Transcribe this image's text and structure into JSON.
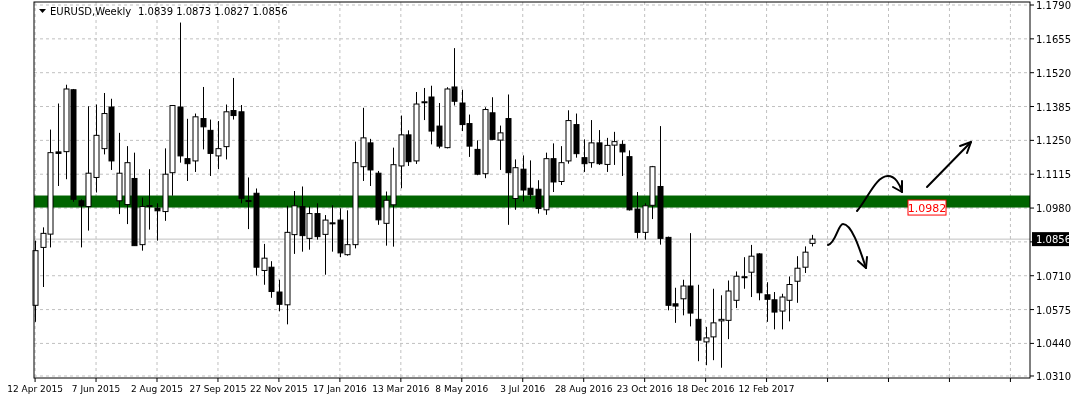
{
  "chart_data": {
    "type": "candlestick",
    "title": "EURUSD,Weekly",
    "subtitle": "1.0839 1.0873 1.0827 1.0856",
    "x": [
      "2015-04-12",
      "2015-04-19",
      "2015-04-26",
      "2015-05-03",
      "2015-05-10",
      "2015-05-17",
      "2015-05-24",
      "2015-05-31",
      "2015-06-07",
      "2015-06-14",
      "2015-06-21",
      "2015-06-28",
      "2015-07-05",
      "2015-07-12",
      "2015-07-19",
      "2015-07-26",
      "2015-08-02",
      "2015-08-09",
      "2015-08-16",
      "2015-08-23",
      "2015-08-30",
      "2015-09-06",
      "2015-09-13",
      "2015-09-20",
      "2015-09-27",
      "2015-10-04",
      "2015-10-11",
      "2015-10-18",
      "2015-10-25",
      "2015-11-01",
      "2015-11-08",
      "2015-11-15",
      "2015-11-22",
      "2015-11-29",
      "2015-12-06",
      "2015-12-13",
      "2015-12-20",
      "2015-12-27",
      "2016-01-03",
      "2016-01-10",
      "2016-01-17",
      "2016-01-24",
      "2016-01-31",
      "2016-02-07",
      "2016-02-14",
      "2016-02-21",
      "2016-02-28",
      "2016-03-06",
      "2016-03-13",
      "2016-03-20",
      "2016-03-27",
      "2016-04-03",
      "2016-04-10",
      "2016-04-17",
      "2016-04-24",
      "2016-05-01",
      "2016-05-08",
      "2016-05-15",
      "2016-05-22",
      "2016-05-29",
      "2016-06-05",
      "2016-06-12",
      "2016-06-19",
      "2016-06-26",
      "2016-07-03",
      "2016-07-10",
      "2016-07-17",
      "2016-07-24",
      "2016-07-31",
      "2016-08-07",
      "2016-08-14",
      "2016-08-21",
      "2016-08-28",
      "2016-09-04",
      "2016-09-11",
      "2016-09-18",
      "2016-09-25",
      "2016-10-02",
      "2016-10-09",
      "2016-10-16",
      "2016-10-23",
      "2016-10-30",
      "2016-11-06",
      "2016-11-13",
      "2016-11-20",
      "2016-11-27",
      "2016-12-04",
      "2016-12-11",
      "2016-12-18",
      "2016-12-25",
      "2017-01-01",
      "2017-01-08",
      "2017-01-15",
      "2017-01-22",
      "2017-01-29",
      "2017-02-05",
      "2017-02-12",
      "2017-02-19",
      "2017-02-26",
      "2017-03-05",
      "2017-03-12",
      "2017-03-19",
      "2017-03-26"
    ],
    "ohlc": [
      [
        1.0592,
        1.085,
        1.0526,
        1.081
      ],
      [
        1.0823,
        1.0903,
        1.0665,
        1.0879
      ],
      [
        1.0876,
        1.1293,
        1.0823,
        1.1201
      ],
      [
        1.1204,
        1.1397,
        1.1068,
        1.1198
      ],
      [
        1.1205,
        1.1472,
        1.1095,
        1.1455
      ],
      [
        1.1452,
        1.1455,
        1.1005,
        1.1015
      ],
      [
        1.1009,
        1.1015,
        1.0823,
        1.0989
      ],
      [
        1.0986,
        1.1386,
        1.089,
        1.1119
      ],
      [
        1.1102,
        1.1393,
        1.1042,
        1.127
      ],
      [
        1.1217,
        1.1439,
        1.1194,
        1.1357
      ],
      [
        1.1383,
        1.1416,
        1.1132,
        1.1168
      ],
      [
        1.1009,
        1.128,
        1.0956,
        1.1119
      ],
      [
        1.0994,
        1.1227,
        1.0916,
        1.1161
      ],
      [
        1.1098,
        1.1201,
        1.083,
        1.083
      ],
      [
        1.0834,
        1.1022,
        1.081,
        1.0986
      ],
      [
        1.0987,
        1.1135,
        1.0894,
        1.099
      ],
      [
        1.098,
        1.0999,
        1.085,
        1.0969
      ],
      [
        1.0966,
        1.1218,
        1.0929,
        1.1115
      ],
      [
        1.1121,
        1.1391,
        1.1029,
        1.1389
      ],
      [
        1.1383,
        1.172,
        1.1161,
        1.1188
      ],
      [
        1.1177,
        1.1336,
        1.1088,
        1.1157
      ],
      [
        1.1168,
        1.1357,
        1.1124,
        1.1344
      ],
      [
        1.1337,
        1.1463,
        1.1214,
        1.1304
      ],
      [
        1.129,
        1.1333,
        1.1108,
        1.1198
      ],
      [
        1.1188,
        1.1327,
        1.1135,
        1.1217
      ],
      [
        1.1225,
        1.1393,
        1.1174,
        1.1364
      ],
      [
        1.1369,
        1.1499,
        1.1333,
        1.1349
      ],
      [
        1.1364,
        1.1391,
        1.0999,
        1.1019
      ],
      [
        1.101,
        1.1102,
        1.0896,
        1.1008
      ],
      [
        1.1039,
        1.1058,
        1.0711,
        1.0744
      ],
      [
        1.0731,
        1.0837,
        1.0674,
        1.078
      ],
      [
        1.0744,
        1.0768,
        1.0622,
        1.0647
      ],
      [
        1.0645,
        1.0694,
        1.0568,
        1.0596
      ],
      [
        1.0594,
        1.0989,
        1.0516,
        1.0883
      ],
      [
        1.0874,
        1.1048,
        1.0797,
        1.0989
      ],
      [
        1.0986,
        1.1066,
        1.0806,
        1.087
      ],
      [
        1.0859,
        1.0986,
        1.0814,
        1.0958
      ],
      [
        1.0958,
        1.0999,
        1.0854,
        1.0866
      ],
      [
        1.0875,
        1.0952,
        1.0714,
        1.0932
      ],
      [
        1.0921,
        1.0991,
        1.0806,
        1.0919
      ],
      [
        1.0932,
        1.0979,
        1.0784,
        1.0801
      ],
      [
        1.0794,
        1.0971,
        1.079,
        1.0834
      ],
      [
        1.0834,
        1.1245,
        1.0819,
        1.1161
      ],
      [
        1.1145,
        1.138,
        1.1088,
        1.126
      ],
      [
        1.124,
        1.1256,
        1.1068,
        1.1132
      ],
      [
        1.1119,
        1.1128,
        1.0913,
        1.0933
      ],
      [
        1.0919,
        1.1046,
        1.083,
        1.1011
      ],
      [
        1.0993,
        1.1221,
        1.0826,
        1.1153
      ],
      [
        1.1148,
        1.1349,
        1.1059,
        1.1272
      ],
      [
        1.1272,
        1.129,
        1.1148,
        1.1165
      ],
      [
        1.1168,
        1.1443,
        1.1156,
        1.1395
      ],
      [
        1.1402,
        1.1459,
        1.1331,
        1.1404
      ],
      [
        1.1423,
        1.1468,
        1.1234,
        1.1287
      ],
      [
        1.1307,
        1.1399,
        1.1218,
        1.1227
      ],
      [
        1.1221,
        1.1462,
        1.1218,
        1.1455
      ],
      [
        1.1463,
        1.1618,
        1.1389,
        1.1406
      ],
      [
        1.1399,
        1.1452,
        1.1287,
        1.1313
      ],
      [
        1.1317,
        1.1353,
        1.1184,
        1.1227
      ],
      [
        1.1214,
        1.125,
        1.1111,
        1.1115
      ],
      [
        1.1117,
        1.1382,
        1.1099,
        1.1373
      ],
      [
        1.136,
        1.1422,
        1.1252,
        1.1254
      ],
      [
        1.1251,
        1.1309,
        1.1132,
        1.128
      ],
      [
        1.1337,
        1.1433,
        1.0913,
        1.1121
      ],
      [
        1.1018,
        1.1174,
        1.0973,
        1.1141
      ],
      [
        1.1135,
        1.119,
        1.1006,
        1.1052
      ],
      [
        1.1059,
        1.117,
        1.1015,
        1.1033
      ],
      [
        1.1055,
        1.1091,
        1.0958,
        1.0978
      ],
      [
        1.0973,
        1.1201,
        1.0953,
        1.1177
      ],
      [
        1.1177,
        1.1238,
        1.1044,
        1.1084
      ],
      [
        1.1086,
        1.1227,
        1.1072,
        1.1161
      ],
      [
        1.1168,
        1.137,
        1.1157,
        1.1329
      ],
      [
        1.1313,
        1.1357,
        1.1181,
        1.1197
      ],
      [
        1.1181,
        1.1254,
        1.1124,
        1.1157
      ],
      [
        1.1161,
        1.1331,
        1.1141,
        1.124
      ],
      [
        1.124,
        1.1291,
        1.1152,
        1.1157
      ],
      [
        1.1154,
        1.126,
        1.1124,
        1.123
      ],
      [
        1.1231,
        1.1284,
        1.1152,
        1.1245
      ],
      [
        1.1234,
        1.125,
        1.1108,
        1.1204
      ],
      [
        1.1185,
        1.121,
        1.097,
        1.0973
      ],
      [
        1.0976,
        1.1044,
        1.0859,
        1.0883
      ],
      [
        1.0883,
        1.0999,
        1.0854,
        1.0989
      ],
      [
        1.0991,
        1.1148,
        1.0936,
        1.1145
      ],
      [
        1.1066,
        1.1307,
        1.0834,
        1.0859
      ],
      [
        1.0863,
        1.0866,
        1.0572,
        1.0592
      ],
      [
        1.0598,
        1.0662,
        1.0522,
        1.0589
      ],
      [
        1.0618,
        1.0694,
        1.0552,
        1.0669
      ],
      [
        1.0669,
        1.088,
        1.0508,
        1.0561
      ],
      [
        1.0536,
        1.0674,
        1.0369,
        1.0453
      ],
      [
        1.0446,
        1.0506,
        1.0353,
        1.0462
      ],
      [
        1.0466,
        1.0658,
        1.0373,
        1.0522
      ],
      [
        1.053,
        1.0632,
        1.0343,
        1.0536
      ],
      [
        1.0532,
        1.0691,
        1.0457,
        1.0649
      ],
      [
        1.0612,
        1.0727,
        1.0581,
        1.0708
      ],
      [
        1.0706,
        1.0784,
        1.0658,
        1.0703
      ],
      [
        1.0724,
        1.0833,
        1.0625,
        1.0788
      ],
      [
        1.0797,
        1.08,
        1.0612,
        1.0642
      ],
      [
        1.0634,
        1.0684,
        1.0526,
        1.0616
      ],
      [
        1.0614,
        1.0645,
        1.0496,
        1.0565
      ],
      [
        1.0569,
        1.0638,
        1.0496,
        1.0625
      ],
      [
        1.0612,
        1.0707,
        1.0528,
        1.0675
      ],
      [
        1.0688,
        1.0788,
        1.0602,
        1.074
      ],
      [
        1.0744,
        1.0827,
        1.0721,
        1.0804
      ],
      [
        1.0839,
        1.0873,
        1.0827,
        1.0856
      ]
    ],
    "xlim": [
      "2015-04-11",
      "2017-10-12"
    ],
    "xticks": [
      {
        "value": "2015-04-12",
        "label": "12 Apr 2015"
      },
      {
        "value": "2015-06-07",
        "label": "7 Jun 2015"
      },
      {
        "value": "2015-08-02",
        "label": "2 Aug 2015"
      },
      {
        "value": "2015-09-27",
        "label": "27 Sep 2015"
      },
      {
        "value": "2015-11-22",
        "label": "22 Nov 2015"
      },
      {
        "value": "2016-01-17",
        "label": "17 Jan 2016"
      },
      {
        "value": "2016-03-13",
        "label": "13 Mar 2016"
      },
      {
        "value": "2016-05-08",
        "label": "8 May 2016"
      },
      {
        "value": "2016-07-03",
        "label": "3 Jul 2016"
      },
      {
        "value": "2016-08-28",
        "label": "28 Aug 2016"
      },
      {
        "value": "2016-10-23",
        "label": "23 Oct 2016"
      },
      {
        "value": "2016-12-18",
        "label": "18 Dec 2016"
      },
      {
        "value": "2017-02-12",
        "label": "12 Feb 2017"
      },
      {
        "value": "2017-04-09",
        "label": null
      },
      {
        "value": "2017-06-04",
        "label": null
      },
      {
        "value": "2017-07-30",
        "label": null
      },
      {
        "value": "2017-09-24",
        "label": null
      }
    ],
    "ylim": [
      1.0302,
      1.1802
    ],
    "yticks": [
      {
        "value": 1.031,
        "label": "1.0310"
      },
      {
        "value": 1.044,
        "label": "1.0440"
      },
      {
        "value": 1.0575,
        "label": "1.0575"
      },
      {
        "value": 1.071,
        "label": "1.0710"
      },
      {
        "value": 1.0845,
        "label": null
      },
      {
        "value": 1.098,
        "label": "1.0980"
      },
      {
        "value": 1.1115,
        "label": "1.1115"
      },
      {
        "value": 1.125,
        "label": "1.1250"
      },
      {
        "value": 1.1385,
        "label": "1.1385"
      },
      {
        "value": 1.152,
        "label": "1.1520"
      },
      {
        "value": 1.1655,
        "label": "1.1655"
      },
      {
        "value": 1.179,
        "label": "1.1790"
      }
    ],
    "grid": true,
    "bands": [
      {
        "axis": "y",
        "from": 1.0982,
        "to": 1.103,
        "label": "1.0982",
        "color": "#006400"
      }
    ],
    "ref_lines": [
      {
        "axis": "y",
        "value": 1.0856,
        "label": "1.0856",
        "color": "#c0c0c0"
      }
    ]
  }
}
